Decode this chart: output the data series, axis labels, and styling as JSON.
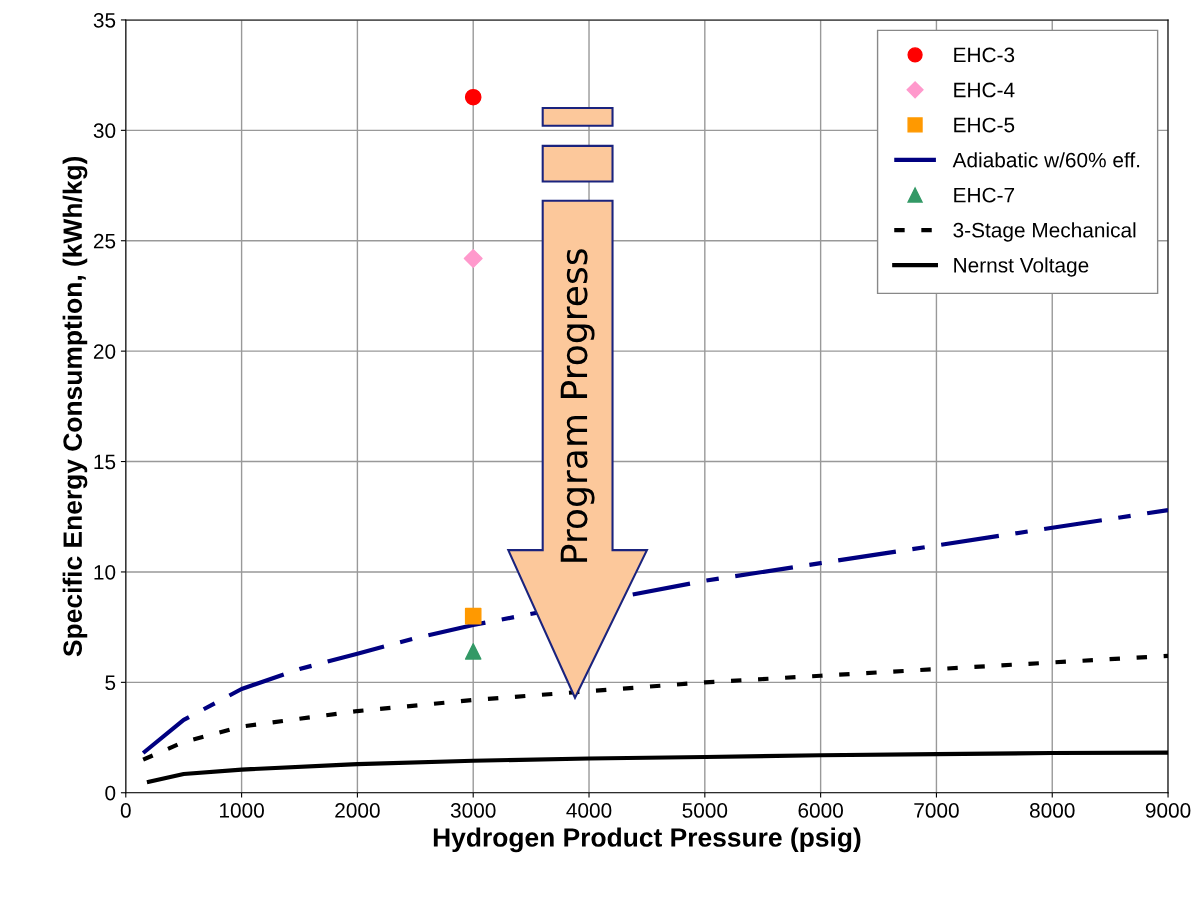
{
  "chart_data": {
    "type": "line",
    "xlabel": "Hydrogen Product Pressure (psig)",
    "ylabel": "Specific Energy Consumption, (kWh/kg)",
    "xlim": [
      0,
      9000
    ],
    "xticks": [
      0,
      1000,
      2000,
      3000,
      4000,
      5000,
      6000,
      7000,
      8000,
      9000
    ],
    "ylim": [
      0,
      35
    ],
    "yticks": [
      0,
      5,
      10,
      15,
      20,
      25,
      30,
      35
    ],
    "grid": true,
    "legend": "top right",
    "annotations": [
      "Program Progress"
    ],
    "series": [
      {
        "name": "EHC-3",
        "type": "scatter",
        "marker": "circle",
        "color": "#ff0000",
        "x": [
          3000
        ],
        "values": [
          31.5
        ]
      },
      {
        "name": "EHC-4",
        "type": "scatter",
        "marker": "diamond",
        "color": "#ff99cc",
        "x": [
          3000
        ],
        "values": [
          24.2
        ]
      },
      {
        "name": "EHC-5",
        "type": "scatter",
        "marker": "square",
        "color": "#ff9900",
        "x": [
          3000
        ],
        "values": [
          8.0
        ]
      },
      {
        "name": "Adiabatic w/60% eff.",
        "line_style": "dashdot",
        "color": "#000080",
        "x": [
          150,
          500,
          1000,
          1500,
          2000,
          2500,
          3000,
          5000,
          6000,
          7000,
          8000,
          9000
        ],
        "values": [
          1.8,
          3.3,
          4.7,
          5.6,
          6.3,
          7.0,
          7.6,
          9.6,
          10.4,
          11.2,
          12.0,
          12.8
        ]
      },
      {
        "name": "EHC-7",
        "type": "scatter",
        "marker": "triangle",
        "color": "#339966",
        "x": [
          3000
        ],
        "values": [
          6.4
        ]
      },
      {
        "name": "3-Stage Mechanical",
        "line_style": "dashed",
        "color": "#000000",
        "x": [
          150,
          500,
          1000,
          2000,
          3000,
          4000,
          5000,
          6000,
          7000,
          8000,
          9000
        ],
        "values": [
          1.5,
          2.3,
          3.0,
          3.7,
          4.2,
          4.6,
          5.0,
          5.3,
          5.6,
          5.9,
          6.2
        ]
      },
      {
        "name": "Nernst Voltage",
        "line_style": "solid",
        "color": "#000000",
        "x": [
          200,
          500,
          1000,
          2000,
          3000,
          4000,
          5000,
          6000,
          7000,
          8000,
          9000
        ],
        "values": [
          0.5,
          0.85,
          1.05,
          1.3,
          1.45,
          1.55,
          1.62,
          1.7,
          1.75,
          1.8,
          1.82
        ]
      }
    ]
  }
}
